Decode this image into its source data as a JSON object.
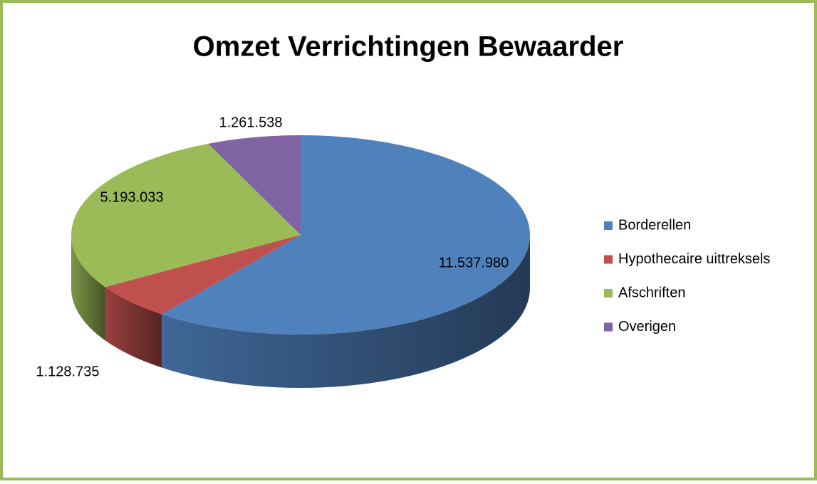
{
  "chart_data": {
    "type": "pie",
    "title": "Omzet Verrichtingen Bewaarder",
    "categories": [
      "Borderellen",
      "Hypothecaire uittreksels",
      "Afschriften",
      "Overigen"
    ],
    "values": [
      11537980,
      1128735,
      5193033,
      1261538
    ],
    "value_labels": [
      "11.537.980",
      "1.128.735",
      "5.193.033",
      "1.261.538"
    ],
    "colors": [
      "#4f81bd",
      "#c0504d",
      "#9bbb59",
      "#8064a2"
    ],
    "legend": "right"
  }
}
